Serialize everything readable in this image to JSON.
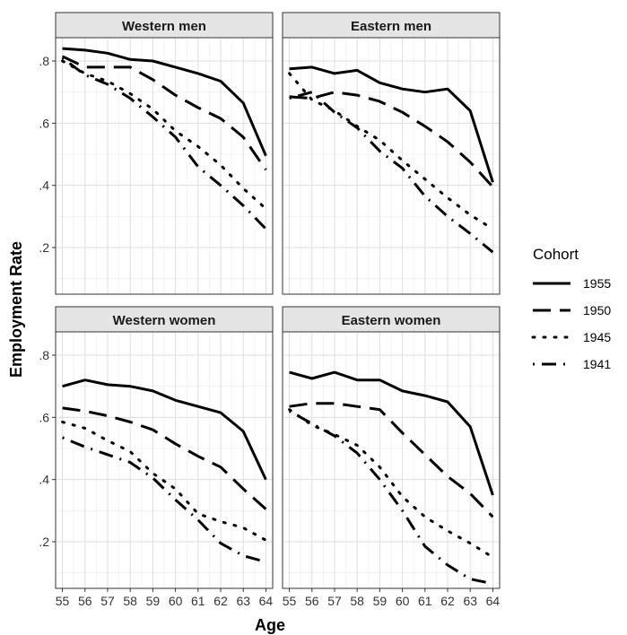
{
  "chart_data": {
    "type": "line",
    "xlabel": "Age",
    "ylabel": "Employment Rate",
    "x": [
      55,
      56,
      57,
      58,
      59,
      60,
      61,
      62,
      63,
      64
    ],
    "x_tick_labels": [
      "55",
      "56",
      "57",
      "58",
      "59",
      "60",
      "61",
      "62",
      "63",
      "64"
    ],
    "y_ticks": [
      0.2,
      0.4,
      0.6,
      0.8
    ],
    "y_tick_labels": [
      ".2",
      ".4",
      ".6",
      ".8"
    ],
    "ylim": [
      0.05,
      0.875
    ],
    "xlim": [
      54.7,
      64.3
    ],
    "grid": true,
    "legend": {
      "title": "Cohort",
      "position": "right",
      "entries": [
        "1955",
        "1950",
        "1945",
        "1941"
      ]
    },
    "panels": [
      {
        "title": "Western men",
        "series": [
          {
            "name": "1955",
            "values": [
              0.84,
              0.835,
              0.825,
              0.805,
              0.8,
              0.78,
              0.76,
              0.735,
              0.665,
              0.495
            ]
          },
          {
            "name": "1950",
            "values": [
              0.815,
              0.78,
              0.78,
              0.78,
              0.74,
              0.69,
              0.65,
              0.615,
              0.555,
              0.45
            ]
          },
          {
            "name": "1945",
            "values": [
              0.8,
              0.76,
              0.735,
              0.695,
              0.645,
              0.575,
              0.525,
              0.465,
              0.39,
              0.325
            ]
          },
          {
            "name": "1941",
            "values": [
              0.81,
              0.755,
              0.725,
              0.68,
              0.62,
              0.555,
              0.46,
              0.4,
              0.335,
              0.26
            ]
          }
        ]
      },
      {
        "title": "Eastern men",
        "series": [
          {
            "name": "1955",
            "values": [
              0.775,
              0.78,
              0.76,
              0.77,
              0.73,
              0.71,
              0.7,
              0.71,
              0.64,
              0.41
            ]
          },
          {
            "name": "1950",
            "values": [
              0.685,
              0.68,
              0.7,
              0.69,
              0.67,
              0.635,
              0.59,
              0.54,
              0.475,
              0.395
            ]
          },
          {
            "name": "1945",
            "values": [
              0.76,
              0.675,
              0.64,
              0.59,
              0.545,
              0.48,
              0.42,
              0.36,
              0.305,
              0.26
            ]
          },
          {
            "name": "1941",
            "values": [
              0.68,
              0.7,
              0.635,
              0.585,
              0.51,
              0.455,
              0.365,
              0.3,
              0.245,
              0.185
            ]
          }
        ]
      },
      {
        "title": "Western women",
        "series": [
          {
            "name": "1955",
            "values": [
              0.7,
              0.72,
              0.705,
              0.7,
              0.685,
              0.655,
              0.635,
              0.615,
              0.555,
              0.4
            ]
          },
          {
            "name": "1950",
            "values": [
              0.63,
              0.62,
              0.605,
              0.585,
              0.56,
              0.515,
              0.475,
              0.44,
              0.37,
              0.305
            ]
          },
          {
            "name": "1945",
            "values": [
              0.585,
              0.565,
              0.525,
              0.49,
              0.42,
              0.37,
              0.29,
              0.265,
              0.245,
              0.205
            ]
          },
          {
            "name": "1941",
            "values": [
              0.535,
              0.505,
              0.48,
              0.455,
              0.405,
              0.335,
              0.27,
              0.195,
              0.155,
              0.135
            ]
          }
        ]
      },
      {
        "title": "Eastern women",
        "series": [
          {
            "name": "1955",
            "values": [
              0.745,
              0.725,
              0.745,
              0.72,
              0.72,
              0.685,
              0.67,
              0.65,
              0.57,
              0.35
            ]
          },
          {
            "name": "1950",
            "values": [
              0.635,
              0.645,
              0.645,
              0.635,
              0.625,
              0.55,
              0.48,
              0.41,
              0.355,
              0.28
            ]
          },
          {
            "name": "1945",
            "values": [
              0.625,
              0.575,
              0.545,
              0.51,
              0.44,
              0.345,
              0.28,
              0.235,
              0.195,
              0.15
            ]
          },
          {
            "name": "1941",
            "values": [
              0.62,
              0.58,
              0.54,
              0.485,
              0.4,
              0.3,
              0.185,
              0.125,
              0.08,
              0.065
            ]
          }
        ]
      }
    ]
  },
  "style": {
    "line_color": "#000000",
    "grid_major": "#dedede",
    "grid_minor": "#f1f1f1",
    "strip_fill": "#e5e5e5",
    "border": "#333333"
  }
}
